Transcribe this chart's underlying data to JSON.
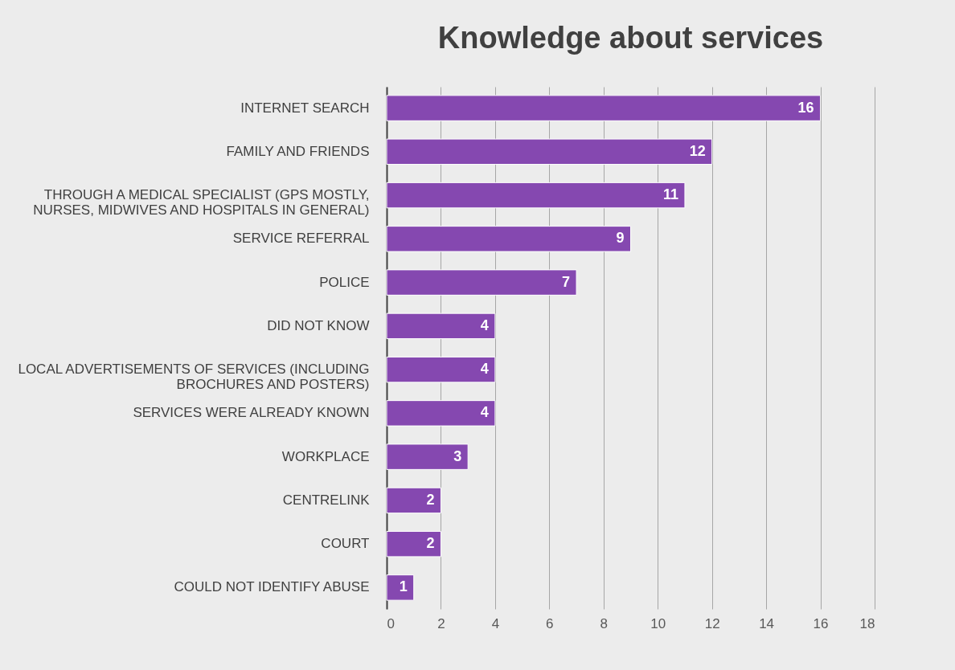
{
  "chart_data": {
    "type": "bar",
    "orientation": "horizontal",
    "title": "Knowledge about services",
    "categories": [
      "INTERNET SEARCH",
      "FAMILY AND FRIENDS",
      "THROUGH A MEDICAL SPECIALIST (GPS MOSTLY, NURSES, MIDWIVES AND HOSPITALS IN GENERAL)",
      "SERVICE REFERRAL",
      "POLICE",
      "DID NOT KNOW",
      "LOCAL ADVERTISEMENTS OF SERVICES (INCLUDING BROCHURES AND POSTERS)",
      "SERVICES WERE ALREADY KNOWN",
      "WORKPLACE",
      "CENTRELINK",
      "COURT",
      "COULD NOT IDENTIFY ABUSE"
    ],
    "values": [
      16,
      12,
      11,
      9,
      7,
      4,
      4,
      4,
      3,
      2,
      2,
      1
    ],
    "color": "#8548b0",
    "xlim": [
      0,
      18
    ],
    "xticks": [
      0,
      2,
      4,
      6,
      8,
      10,
      12,
      14,
      16,
      18
    ],
    "grid": "x",
    "data_labels": true
  }
}
